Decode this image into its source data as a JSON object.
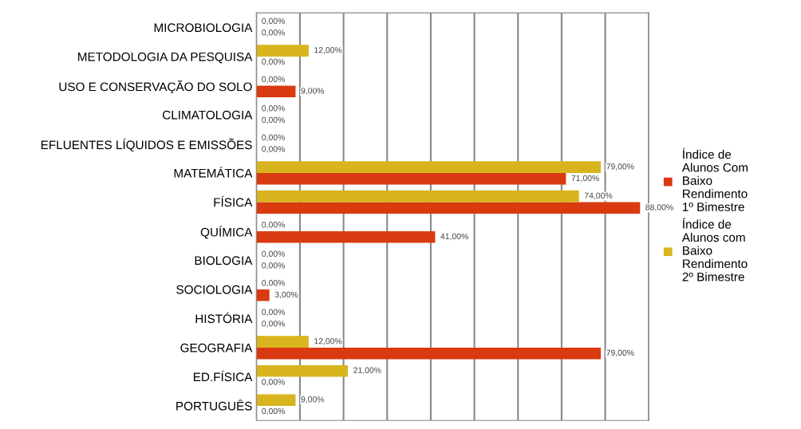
{
  "chart_data": {
    "type": "bar",
    "orientation": "horizontal",
    "categories": [
      "MICROBIOLOGIA",
      "METODOLOGIA DA PESQUISA",
      "USO E CONSERVAÇÃO DO SOLO",
      "CLIMATOLOGIA",
      "EFLUENTES LÍQUIDOS E EMISSÕES",
      "MATEMÁTICA",
      "FÍSICA",
      "QUÍMICA",
      "BIOLOGIA",
      "SOCIOLOGIA",
      "HISTÓRIA",
      "GEOGRAFIA",
      "ED.FÍSICA",
      "PORTUGUÊS"
    ],
    "series": [
      {
        "name": "Índice de Alunos Com Baixo Rendimento 1º Bimestre",
        "color": "#d93a10",
        "values": [
          0,
          0,
          9,
          0,
          0,
          71,
          88,
          41,
          0,
          3,
          0,
          79,
          0,
          0
        ],
        "value_labels": [
          "0,00%",
          "0,00%",
          "9,00%",
          "0,00%",
          "0,00%",
          "71,00%",
          "88,00%",
          "41,00%",
          "0,00%",
          "3,00%",
          "0,00%",
          "79,00%",
          "0,00%",
          "0,00%"
        ]
      },
      {
        "name": "Índice de Alunos com Baixo Rendimento 2º Bimestre",
        "color": "#d8b41e",
        "values": [
          0,
          12,
          0,
          0,
          0,
          79,
          74,
          0,
          0,
          0,
          0,
          12,
          21,
          9
        ],
        "value_labels": [
          "0,00%",
          "12,00%",
          "0,00%",
          "0,00%",
          "0,00%",
          "79,00%",
          "74,00%",
          "0,00%",
          "0,00%",
          "0,00%",
          "0,00%",
          "12,00%",
          "21,00%",
          "9,00%"
        ]
      }
    ],
    "xlim": [
      0,
      90
    ],
    "xticks": [
      {
        "value": 0,
        "label": null
      },
      {
        "value": 10,
        "label": null
      },
      {
        "value": 20,
        "label": null
      },
      {
        "value": 30,
        "label": null
      },
      {
        "value": 40,
        "label": null
      },
      {
        "value": 50,
        "label": null
      },
      {
        "value": 60,
        "label": null
      },
      {
        "value": 70,
        "label": null
      },
      {
        "value": 80,
        "label": null
      },
      {
        "value": 90,
        "label": null
      }
    ],
    "grid": "x",
    "legend": "right",
    "tick_labels": "y"
  }
}
